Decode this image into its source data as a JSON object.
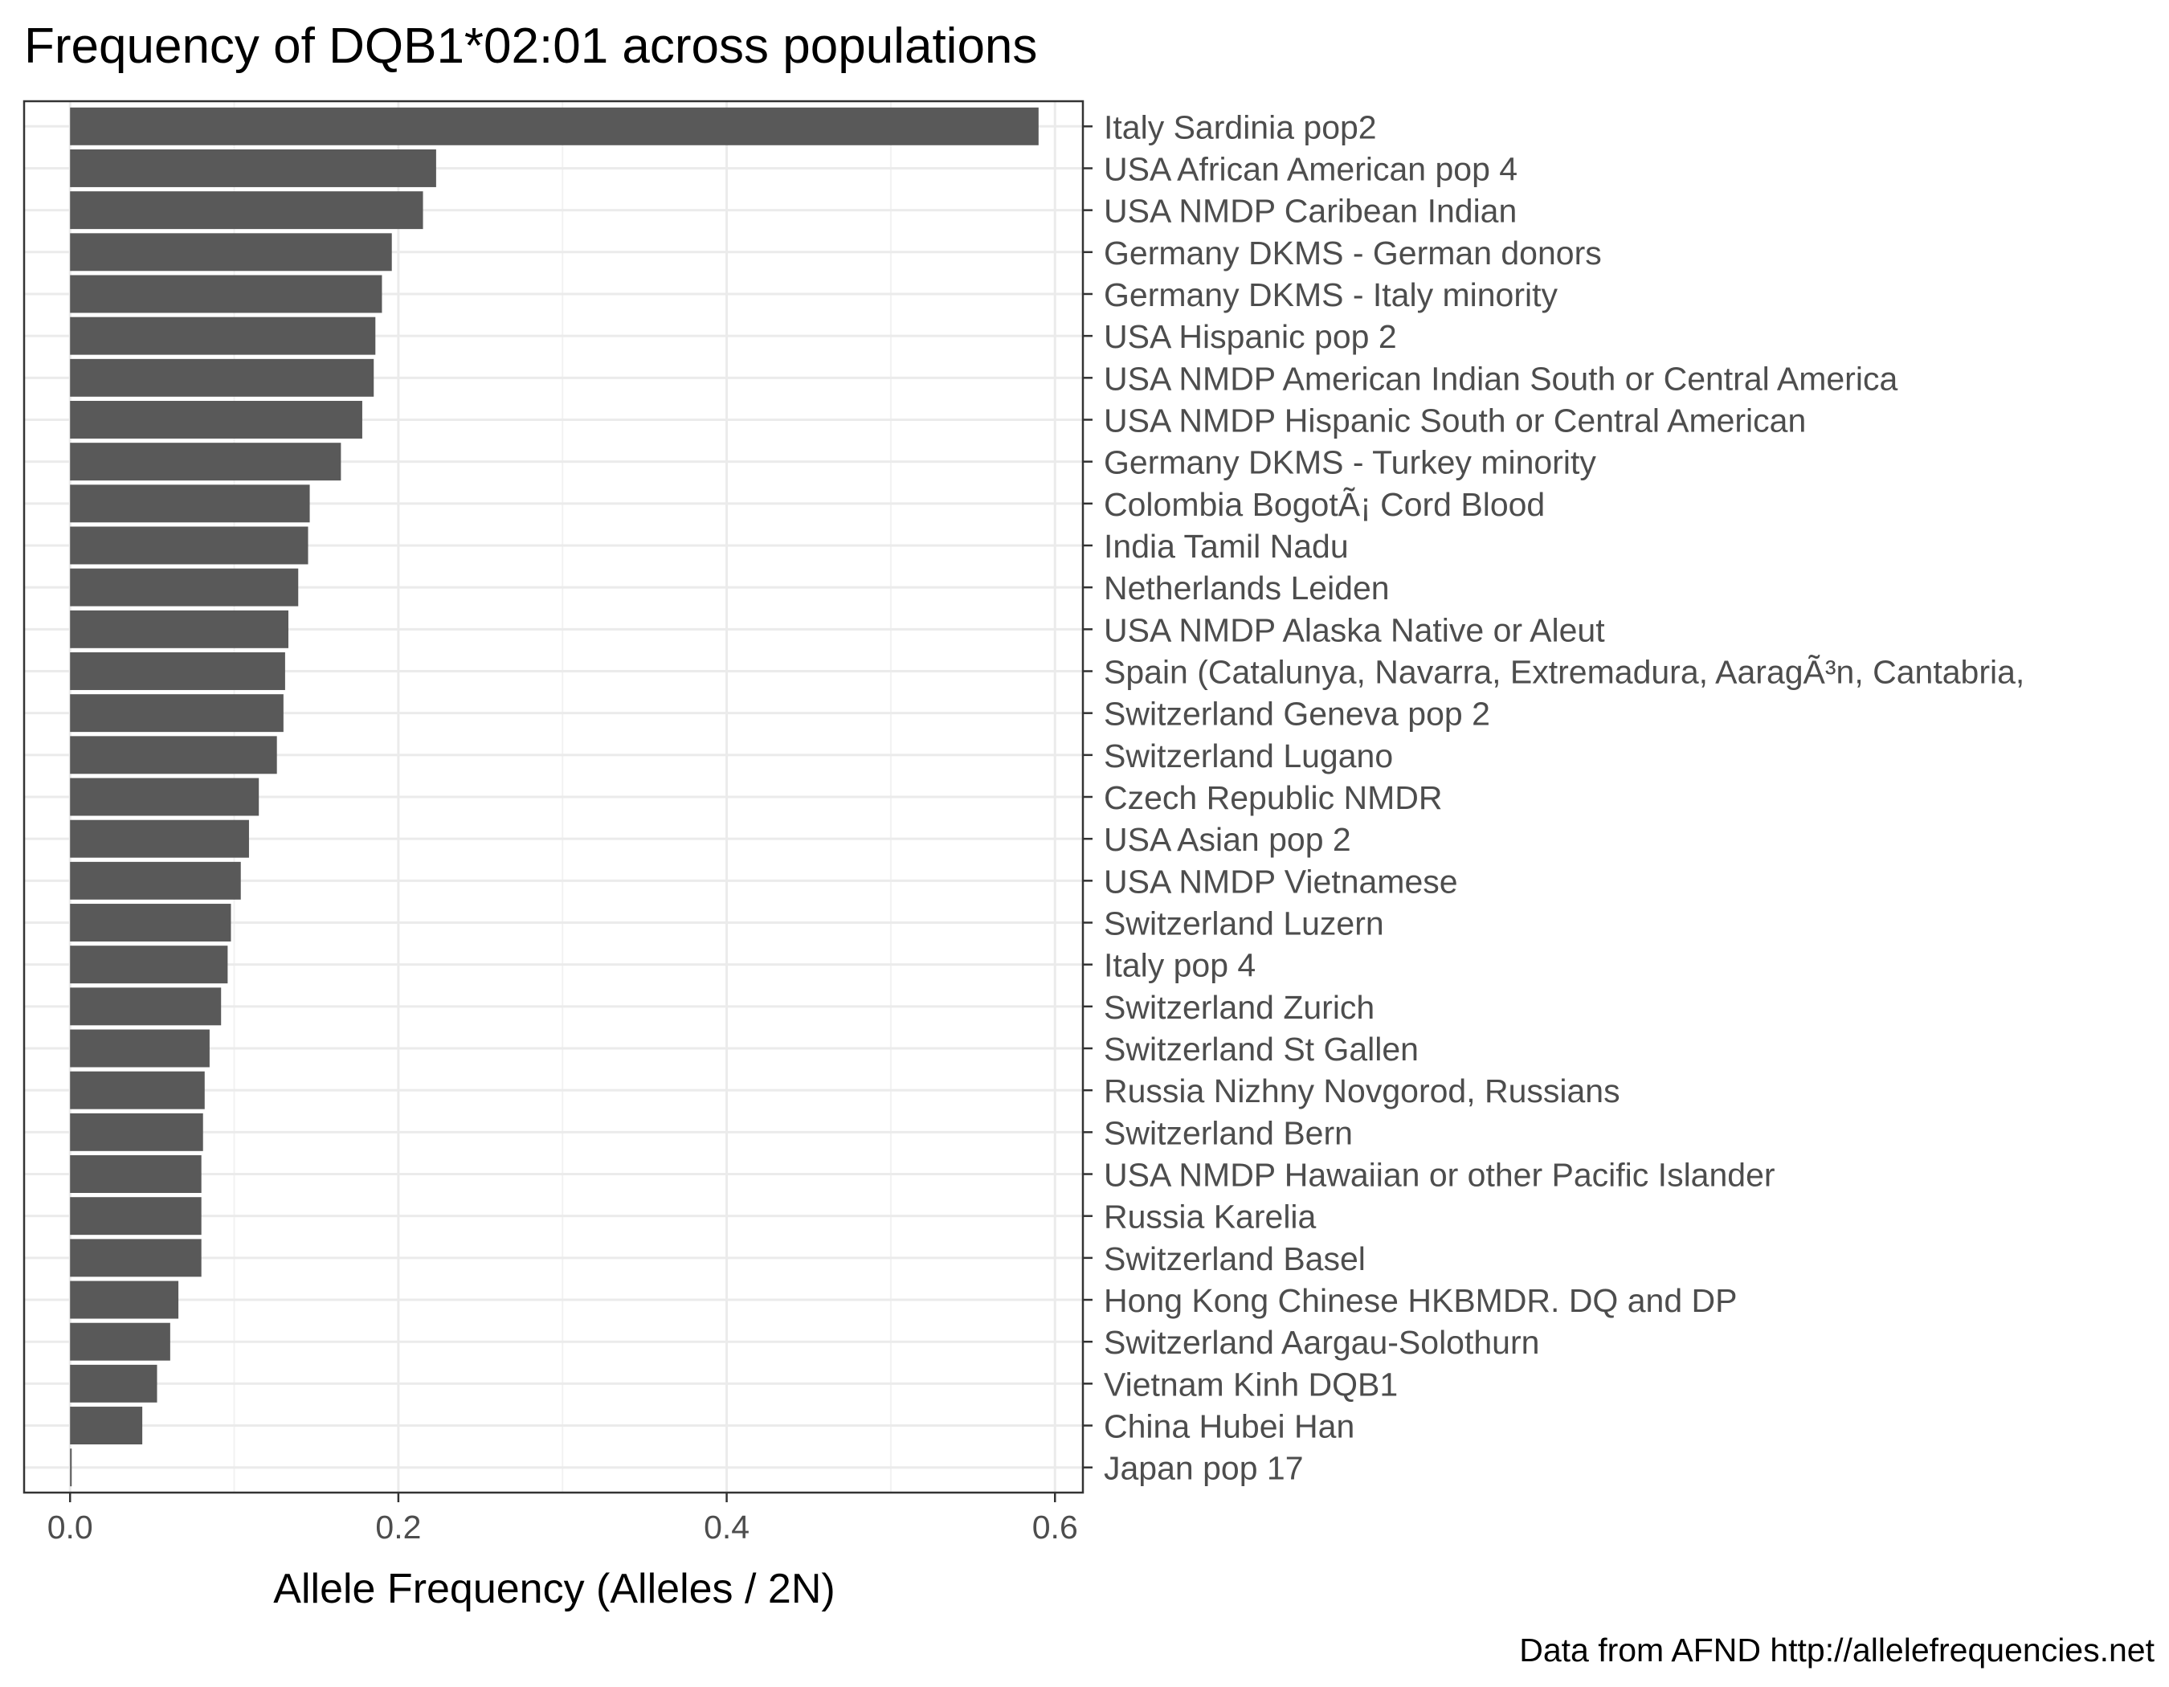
{
  "chart_data": {
    "type": "bar",
    "orientation": "horizontal",
    "title": "Frequency of DQB1*02:01 across populations",
    "xlabel": "Allele Frequency (Alleles / 2N)",
    "ylabel": "",
    "caption": "Data from AFND http://allelefrequencies.net",
    "xlim": [
      -0.028,
      0.617
    ],
    "x_ticks": [
      0.0,
      0.2,
      0.4,
      0.6
    ],
    "x_tick_labels": [
      "0.0",
      "0.2",
      "0.4",
      "0.6"
    ],
    "grid": true,
    "legend": "none",
    "bar_color": "#595959",
    "categories": [
      "Italy Sardinia pop2",
      "USA African American pop 4",
      "USA NMDP Caribean Indian",
      "Germany DKMS - German donors",
      "Germany DKMS - Italy minority",
      "USA Hispanic pop 2",
      "USA NMDP American Indian South or Central America",
      "USA NMDP Hispanic South or Central American",
      "Germany DKMS - Turkey minority",
      "Colombia BogotÃ¡ Cord Blood",
      "India Tamil Nadu",
      "Netherlands Leiden",
      "USA NMDP Alaska Native or Aleut",
      "Spain (Catalunya, Navarra, Extremadura, AaragÃ³n, Cantabria,",
      "Switzerland Geneva pop 2",
      "Switzerland Lugano",
      "Czech Republic NMDR",
      "USA Asian pop 2",
      "USA NMDP Vietnamese",
      "Switzerland Luzern",
      "Italy pop 4",
      "Switzerland Zurich",
      "Switzerland St Gallen",
      "Russia Nizhny Novgorod, Russians",
      "Switzerland Bern",
      "USA NMDP Hawaiian or other Pacific Islander",
      "Russia Karelia",
      "Switzerland Basel",
      "Hong Kong Chinese HKBMDR. DQ and DP",
      "Switzerland Aargau-Solothurn",
      "Vietnam Kinh  DQB1",
      "China Hubei Han",
      "Japan pop 17"
    ],
    "values": [
      0.59,
      0.223,
      0.215,
      0.196,
      0.19,
      0.186,
      0.185,
      0.178,
      0.165,
      0.146,
      0.145,
      0.139,
      0.133,
      0.131,
      0.13,
      0.126,
      0.115,
      0.109,
      0.104,
      0.098,
      0.096,
      0.092,
      0.085,
      0.082,
      0.081,
      0.08,
      0.08,
      0.08,
      0.066,
      0.061,
      0.053,
      0.044,
      0.001
    ]
  }
}
